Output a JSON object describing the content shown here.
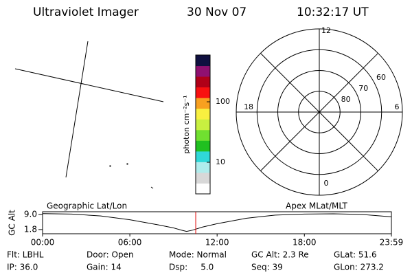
{
  "header": {
    "title": "Ultraviolet Imager",
    "date": "30 Nov 07",
    "time": "10:32:17 UT"
  },
  "colorbar": {
    "label": "photon cm⁻²s⁻¹",
    "log": true,
    "lim": [
      3,
      594
    ],
    "ticks": [
      10,
      100
    ],
    "colors": [
      "#ffffff",
      "#d8d8d8",
      "#b0ecec",
      "#30d8d8",
      "#20c020",
      "#70e030",
      "#c8f040",
      "#f8f040",
      "#f8a020",
      "#f81010",
      "#b00018",
      "#901070",
      "#101040"
    ]
  },
  "polar": {
    "rlim": [
      90,
      50
    ],
    "lat_labels": [
      80,
      70,
      60
    ],
    "hours": [
      12,
      6,
      0,
      18
    ]
  },
  "chart_data": {
    "type": "line",
    "ylabel": "GC Alt",
    "left_label": "Geographic Lat/Lon",
    "right_label": "Apex MLat/MLT",
    "xlim": [
      0,
      23.983
    ],
    "ylim": [
      -0.2,
      10.3
    ],
    "xticks": [
      {
        "value": 0,
        "label": "00:00"
      },
      {
        "value": 6,
        "label": "06:00"
      },
      {
        "value": 12,
        "label": "12:00"
      },
      {
        "value": 18,
        "label": "18:00"
      },
      {
        "value": 23.983,
        "label": "23:59"
      }
    ],
    "yticks": [
      {
        "value": 9.0,
        "label": "9.0"
      },
      {
        "value": 1.8,
        "label": "1.8"
      }
    ],
    "x": [
      0,
      2,
      4,
      6,
      8,
      9,
      9.5,
      9.9,
      10.3,
      11,
      12,
      14,
      16,
      18,
      20,
      22,
      23.983
    ],
    "series": [
      {
        "color": "#000000",
        "values": [
          9.4,
          9.2,
          8.3,
          6.5,
          4.0,
          2.6,
          1.6,
          0.9,
          1.5,
          3.0,
          4.6,
          7.2,
          8.7,
          9.2,
          9.3,
          9.0,
          7.9
        ]
      }
    ],
    "current_time": 10.53,
    "current_color": "#e00000"
  },
  "footer": {
    "rows": [
      [
        "Flt: LBHL",
        "Door: Open",
        "Mode: Normal",
        "GC Alt: 2.3 Re",
        "GLat: 51.6"
      ],
      [
        "IP: 36.0",
        "Gain: 14",
        "Dsp:     5.0",
        "Seq: 39",
        "GLon: 273.2"
      ]
    ]
  }
}
